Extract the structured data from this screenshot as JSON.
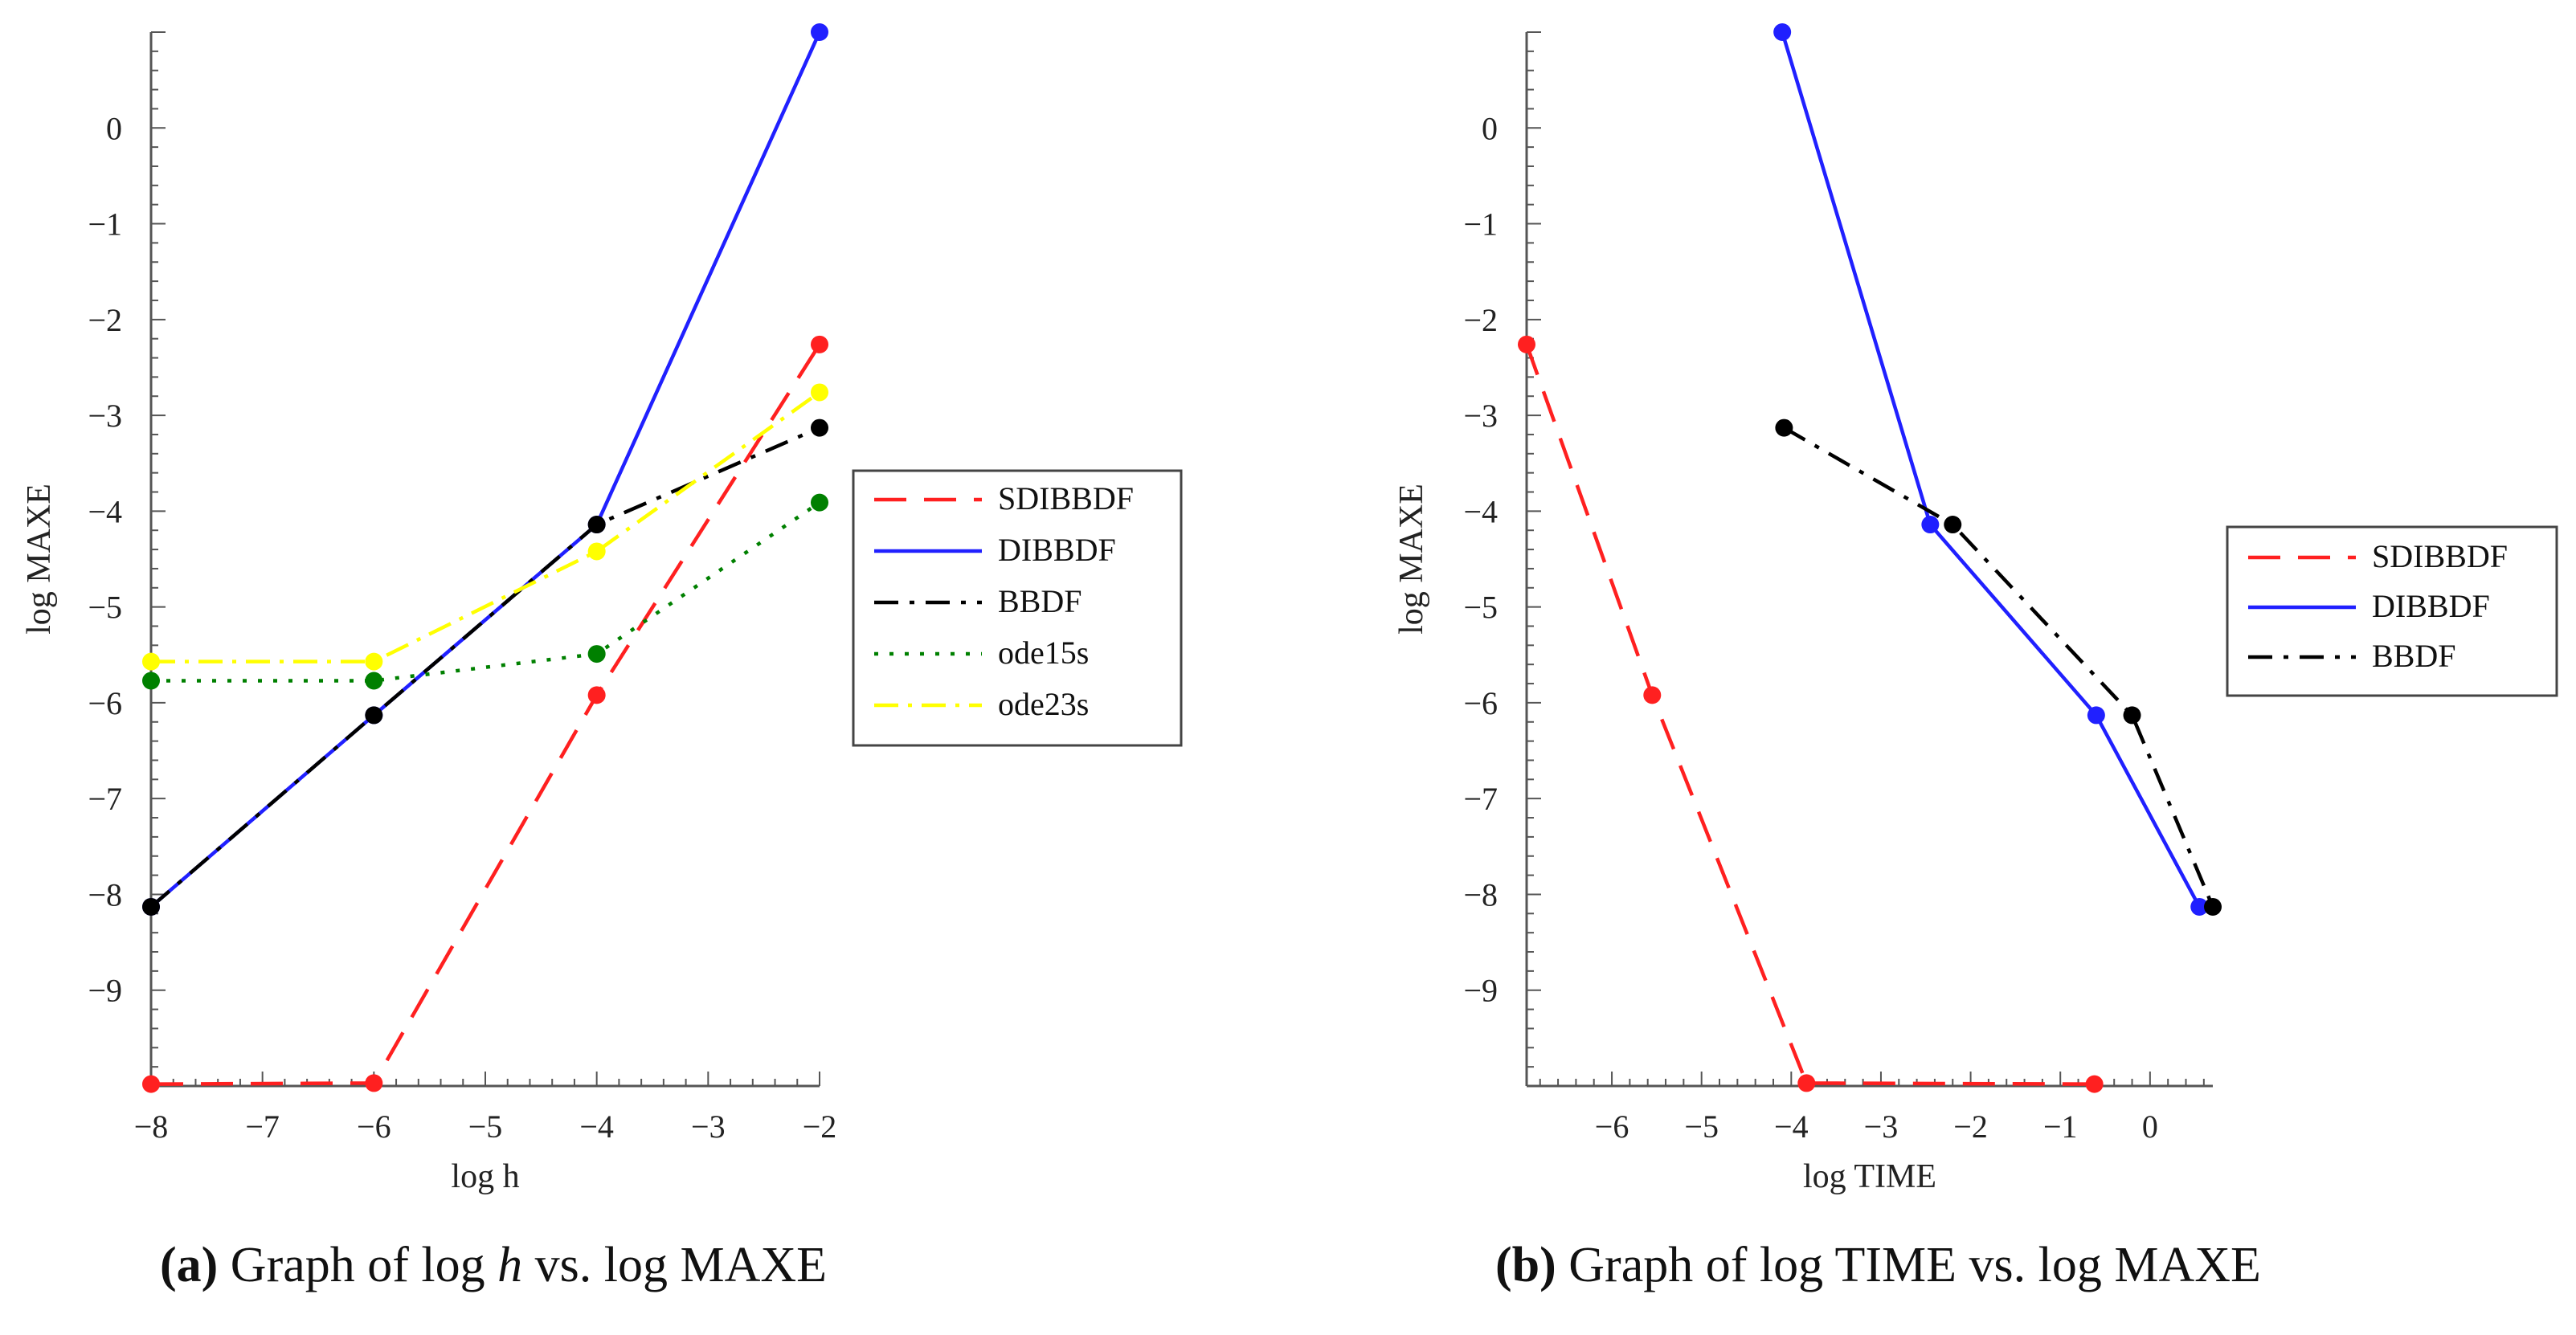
{
  "chart_data": [
    {
      "type": "line",
      "panel": "a",
      "caption": {
        "letter": "(a)",
        "before": "Graph of log ",
        "italic": "h",
        "after": " vs. log MAXE"
      },
      "xlabel": "log h",
      "ylabel": "log MAXE",
      "xlim": [
        -8,
        -2
      ],
      "ylim": [
        -10,
        1
      ],
      "xticks": [
        -8,
        -7,
        -6,
        -5,
        -4,
        -3,
        -2
      ],
      "yticks": [
        0,
        -1,
        -2,
        -3,
        -4,
        -5,
        -6,
        -7,
        -8,
        -9
      ],
      "legend_position": "right",
      "series": [
        {
          "name": "SDIBBDF",
          "color": "#ff2020",
          "dash": "long-dash",
          "x": [
            -8,
            -6,
            -4,
            -2
          ],
          "y": [
            -9.98,
            -9.97,
            -5.92,
            -2.26
          ]
        },
        {
          "name": "DIBBDF",
          "color": "#2020ff",
          "dash": "solid",
          "x": [
            -8,
            -6,
            -4,
            -2
          ],
          "y": [
            -8.13,
            -6.13,
            -4.14,
            1.0
          ]
        },
        {
          "name": "BBDF",
          "color": "#000000",
          "dash": "dash",
          "x": [
            -8,
            -6,
            -4,
            -2
          ],
          "y": [
            -8.13,
            -6.13,
            -4.14,
            -3.13
          ]
        },
        {
          "name": "ode15s",
          "color": "#008000",
          "dash": "dot",
          "x": [
            -8,
            -6,
            -4,
            -2
          ],
          "y": [
            -5.77,
            -5.77,
            -5.49,
            -3.91
          ]
        },
        {
          "name": "ode23s",
          "color": "#ffff00",
          "dash": "dash-dot",
          "x": [
            -8,
            -6,
            -4,
            -2
          ],
          "y": [
            -5.57,
            -5.57,
            -4.42,
            -2.76
          ]
        }
      ]
    },
    {
      "type": "line",
      "panel": "b",
      "caption": {
        "letter": "(b)",
        "before": "Graph of log TIME vs. log MAXE",
        "italic": "",
        "after": ""
      },
      "xlabel": "log TIME",
      "ylabel": "log MAXE",
      "xlim": [
        -6.95,
        0.7
      ],
      "ylim": [
        -10,
        1
      ],
      "xticks": [
        -6,
        -5,
        -4,
        -3,
        -2,
        -1,
        0
      ],
      "yticks": [
        0,
        -1,
        -2,
        -3,
        -4,
        -5,
        -6,
        -7,
        -8,
        -9
      ],
      "legend_position": "right",
      "series": [
        {
          "name": "SDIBBDF",
          "color": "#ff2020",
          "dash": "long-dash",
          "x": [
            -6.95,
            -5.55,
            -3.83,
            -0.62
          ],
          "y": [
            -2.26,
            -5.92,
            -9.97,
            -9.98
          ]
        },
        {
          "name": "DIBBDF",
          "color": "#2020ff",
          "dash": "solid",
          "x": [
            -4.1,
            -2.45,
            -0.6,
            0.55
          ],
          "y": [
            1.0,
            -4.14,
            -6.13,
            -8.13
          ]
        },
        {
          "name": "BBDF",
          "color": "#000000",
          "dash": "dash",
          "x": [
            -4.08,
            -2.2,
            -0.2,
            0.7
          ],
          "y": [
            -3.13,
            -4.14,
            -6.13,
            -8.13
          ]
        }
      ]
    }
  ]
}
